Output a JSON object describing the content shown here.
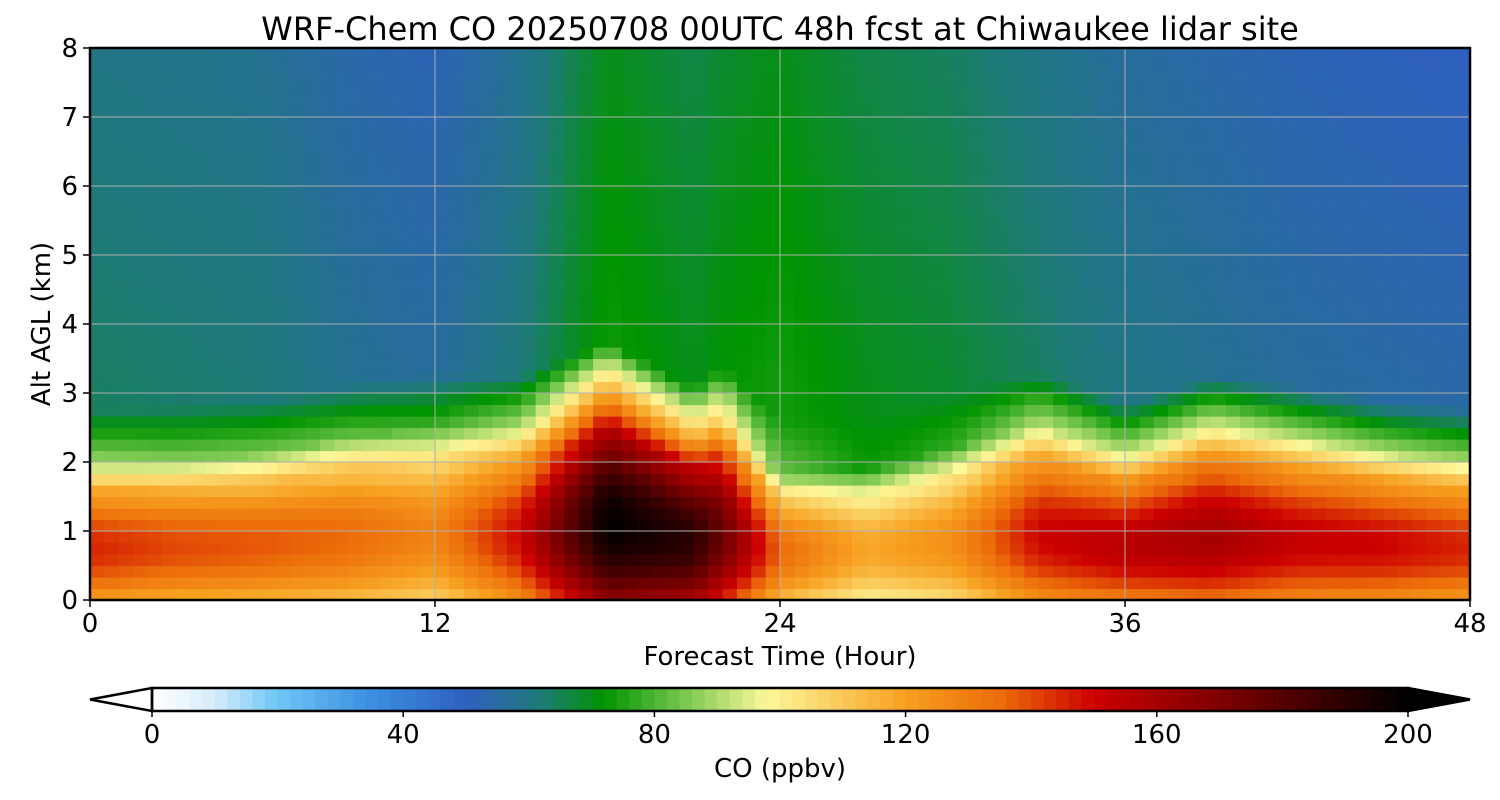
{
  "chart_data": {
    "type": "heatmap",
    "title": "WRF-Chem CO  20250708 00UTC 48h fcst at Chiwaukee lidar site",
    "xlabel": "Forecast Time (Hour)",
    "ylabel": "Alt AGL (km)",
    "xlim": [
      0,
      48
    ],
    "ylim": [
      0,
      8
    ],
    "xticks": [
      0,
      12,
      24,
      36,
      48
    ],
    "yticks": [
      0,
      1,
      2,
      3,
      4,
      5,
      6,
      7,
      8
    ],
    "grid": true,
    "colorbar": {
      "label": "CO  (ppbv)",
      "min": 0,
      "max": 200,
      "ticks": [
        0,
        40,
        80,
        120,
        160,
        200
      ],
      "extend": "both",
      "stops": [
        {
          "value": 0,
          "color": "#ffffff"
        },
        {
          "value": 10,
          "color": "#d6ecfa"
        },
        {
          "value": 20,
          "color": "#6ec6f5"
        },
        {
          "value": 35,
          "color": "#3a8fe0"
        },
        {
          "value": 50,
          "color": "#2f5fc0"
        },
        {
          "value": 62,
          "color": "#1e7a78"
        },
        {
          "value": 72,
          "color": "#009400"
        },
        {
          "value": 85,
          "color": "#7cc850"
        },
        {
          "value": 98,
          "color": "#fdf89a"
        },
        {
          "value": 120,
          "color": "#f7a020"
        },
        {
          "value": 135,
          "color": "#ec6d0a"
        },
        {
          "value": 150,
          "color": "#cc0000"
        },
        {
          "value": 175,
          "color": "#6a0000"
        },
        {
          "value": 200,
          "color": "#000000"
        }
      ]
    },
    "profile": {
      "x": [
        0,
        3,
        6,
        9,
        12,
        15,
        18,
        21,
        22,
        24,
        27,
        30,
        33,
        36,
        39,
        42,
        45,
        48
      ],
      "boundary_layer_top_km": [
        1.95,
        2.0,
        2.1,
        2.35,
        2.5,
        2.45,
        2.95,
        2.3,
        2.6,
        1.8,
        1.9,
        2.2,
        2.5,
        2.05,
        2.45,
        2.3,
        2.1,
        2.0
      ],
      "near_surface_peak_ppbv": [
        145,
        140,
        138,
        135,
        128,
        150,
        200,
        190,
        175,
        135,
        118,
        125,
        150,
        155,
        160,
        152,
        150,
        145
      ],
      "free_troposphere_ppbv": [
        64,
        63,
        62,
        58,
        56,
        62,
        74,
        70,
        72,
        74,
        70,
        68,
        64,
        60,
        58,
        56,
        55,
        54
      ]
    }
  }
}
